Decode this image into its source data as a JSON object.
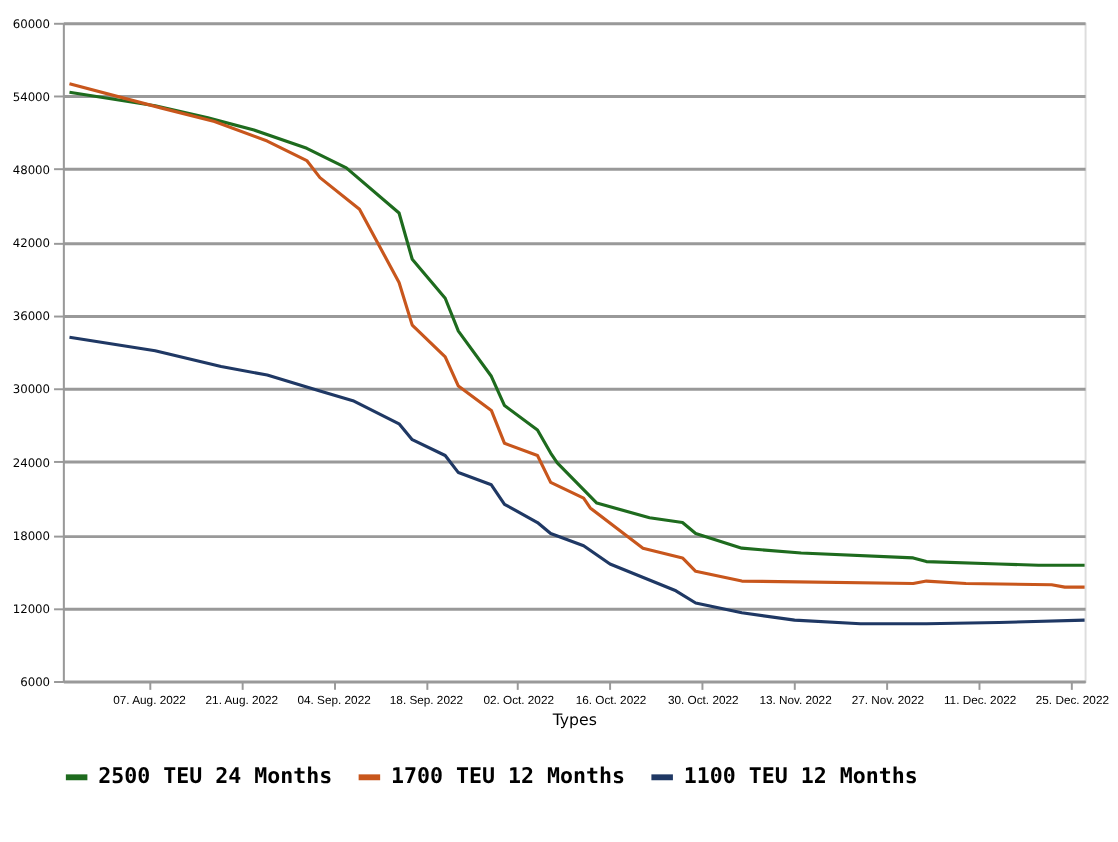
{
  "chart_data": {
    "type": "line",
    "xlabel": "Types",
    "xlim": [
      "2022-07-25",
      "2022-12-27"
    ],
    "xticks": [
      {
        "value": "2022-08-07",
        "label": "07. Aug. 2022"
      },
      {
        "value": "2022-08-21",
        "label": "21. Aug. 2022"
      },
      {
        "value": "2022-09-04",
        "label": "04. Sep. 2022"
      },
      {
        "value": "2022-09-18",
        "label": "18. Sep. 2022"
      },
      {
        "value": "2022-10-02",
        "label": "02. Oct. 2022"
      },
      {
        "value": "2022-10-16",
        "label": "16. Oct. 2022"
      },
      {
        "value": "2022-10-30",
        "label": "30. Oct. 2022"
      },
      {
        "value": "2022-11-13",
        "label": "13. Nov. 2022"
      },
      {
        "value": "2022-11-27",
        "label": "27. Nov. 2022"
      },
      {
        "value": "2022-12-11",
        "label": "11. Dec. 2022"
      },
      {
        "value": "2022-12-25",
        "label": "25. Dec. 2022"
      }
    ],
    "ylim": [
      6000,
      60000
    ],
    "yticks": [
      6000,
      12000,
      18000,
      24000,
      30000,
      36000,
      42000,
      48000,
      54000,
      60000
    ],
    "grid": "y",
    "legend": "bottom",
    "marker": "none",
    "line_style": "solid",
    "series": [
      {
        "name": "2500 TEU 24 Months",
        "color": "#1e6b1e",
        "x": [
          "2022-07-26",
          "2022-08-08",
          "2022-08-16",
          "2022-08-23",
          "2022-08-31",
          "2022-09-06",
          "2022-09-14",
          "2022-09-16",
          "2022-09-21",
          "2022-09-23",
          "2022-09-28",
          "2022-09-30",
          "2022-10-05",
          "2022-10-07",
          "2022-10-08",
          "2022-10-14",
          "2022-10-22",
          "2022-10-27",
          "2022-10-29",
          "2022-11-05",
          "2022-11-14",
          "2022-12-01",
          "2022-12-03",
          "2022-12-14",
          "2022-12-20",
          "2022-12-27"
        ],
        "values": [
          54300,
          53200,
          52200,
          51200,
          49700,
          48100,
          44400,
          40600,
          37400,
          34700,
          31000,
          28600,
          26600,
          24700,
          23900,
          20600,
          19400,
          19000,
          18100,
          16900,
          16500,
          16100,
          15800,
          15600,
          15500,
          15500
        ]
      },
      {
        "name": "1700 TEU 12 Months",
        "color": "#c8561c",
        "x": [
          "2022-07-26",
          "2022-08-09",
          "2022-08-17",
          "2022-08-25",
          "2022-08-31",
          "2022-09-02",
          "2022-09-08",
          "2022-09-14",
          "2022-09-16",
          "2022-09-21",
          "2022-09-23",
          "2022-09-28",
          "2022-09-30",
          "2022-10-05",
          "2022-10-07",
          "2022-10-12",
          "2022-10-13",
          "2022-10-21",
          "2022-10-27",
          "2022-10-29",
          "2022-11-05",
          "2022-12-01",
          "2022-12-03",
          "2022-12-09",
          "2022-12-22",
          "2022-12-24",
          "2022-12-27"
        ],
        "values": [
          55000,
          53000,
          51900,
          50300,
          48700,
          47300,
          44700,
          38700,
          35200,
          32600,
          30200,
          28200,
          25500,
          24500,
          22300,
          21000,
          20200,
          16900,
          16100,
          15000,
          14200,
          14000,
          14200,
          14000,
          13900,
          13700,
          13700
        ]
      },
      {
        "name": "1100 TEU 12 Months",
        "color": "#1f3864",
        "x": [
          "2022-07-26",
          "2022-08-08",
          "2022-08-18",
          "2022-08-25",
          "2022-09-02",
          "2022-09-07",
          "2022-09-14",
          "2022-09-16",
          "2022-09-21",
          "2022-09-23",
          "2022-09-28",
          "2022-09-30",
          "2022-10-05",
          "2022-10-07",
          "2022-10-12",
          "2022-10-16",
          "2022-10-26",
          "2022-10-29",
          "2022-11-05",
          "2022-11-13",
          "2022-11-23",
          "2022-12-03",
          "2022-12-14",
          "2022-12-27"
        ],
        "values": [
          34200,
          33100,
          31800,
          31100,
          29800,
          29000,
          27100,
          25800,
          24500,
          23100,
          22100,
          20500,
          19000,
          18100,
          17100,
          15600,
          13400,
          12400,
          11600,
          11000,
          10700,
          10700,
          10800,
          11000
        ]
      }
    ]
  }
}
